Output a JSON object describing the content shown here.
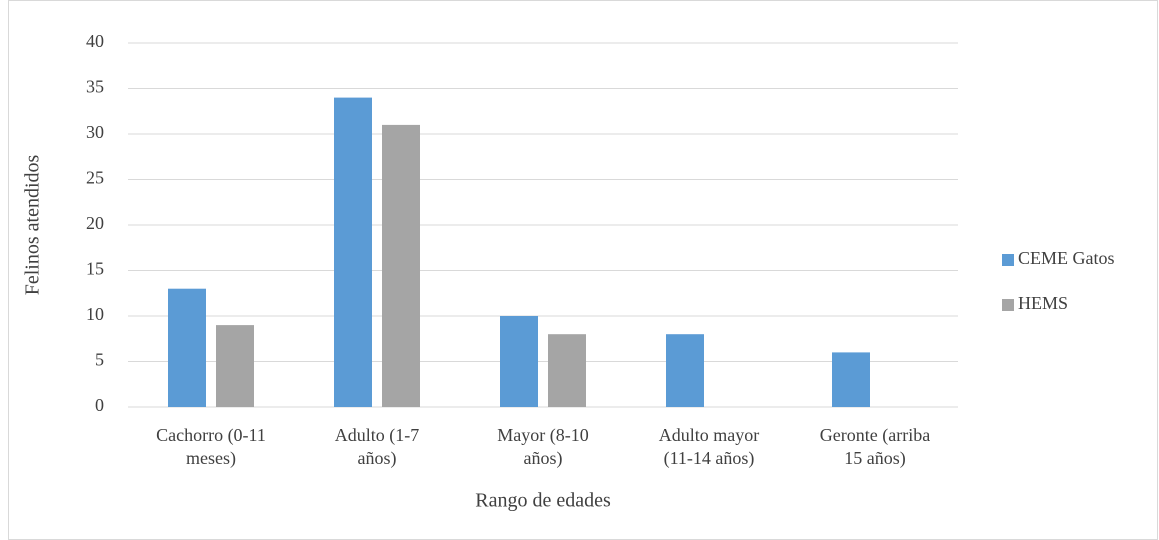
{
  "chart_data": {
    "type": "bar",
    "categories": [
      [
        "Cachorro (0-11",
        "meses)"
      ],
      [
        "Adulto (1-7",
        "años)"
      ],
      [
        "Mayor (8-10",
        "años)"
      ],
      [
        "Adulto mayor",
        "(11-14 años)"
      ],
      [
        "Geronte (arriba",
        "15 años)"
      ]
    ],
    "series": [
      {
        "name": "CEME Gatos",
        "color": "#5b9bd5",
        "values": [
          13,
          34,
          10,
          8,
          6
        ]
      },
      {
        "name": "HEMS",
        "color": "#a5a5a5",
        "values": [
          9,
          31,
          8,
          0,
          0
        ]
      }
    ],
    "xlabel": "Rango de edades",
    "ylabel": "Felinos atendidos",
    "ylim": [
      0,
      40
    ],
    "yticks": [
      0,
      5,
      10,
      15,
      20,
      25,
      30,
      35,
      40
    ],
    "grid": true,
    "legend": "right"
  }
}
